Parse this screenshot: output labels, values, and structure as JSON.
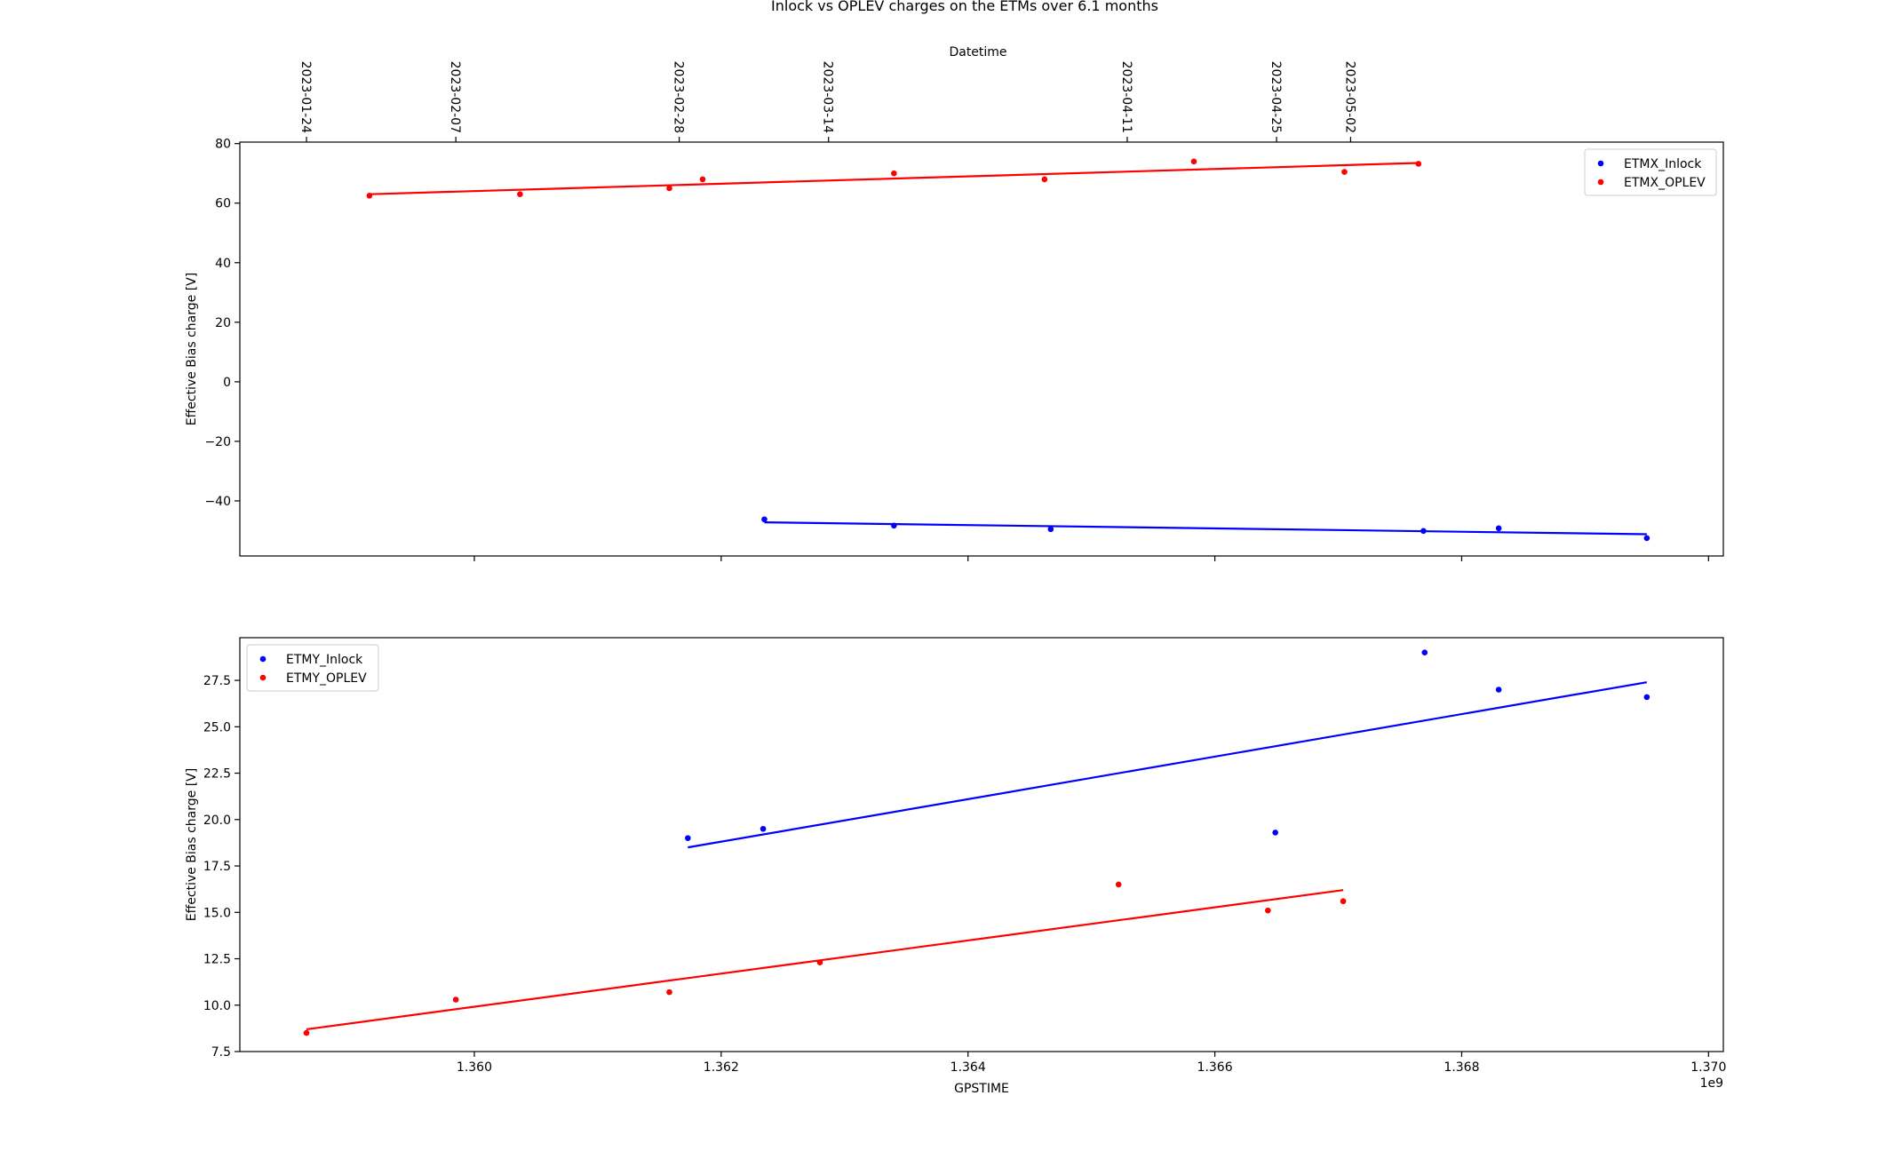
{
  "figure": {
    "title": "Inlock vs OPLEV charges on the ETMs over 6.1 months"
  },
  "chart_data": [
    {
      "type": "scatter",
      "panel": "top",
      "xlabel": "",
      "ylabel": "Effective Bias charge [V]",
      "xlim": [
        1358100000,
        1370120000
      ],
      "ylim": [
        -58.5,
        80.5
      ],
      "xticks": [
        1360000000,
        1362000000,
        1364000000,
        1366000000,
        1368000000,
        1370000000
      ],
      "xtick_labels_visible": false,
      "yticks": [
        -40,
        -20,
        0,
        20,
        40,
        60,
        80
      ],
      "ytick_labels": [
        "−40",
        "−20",
        "0",
        "20",
        "40",
        "60",
        "80"
      ],
      "secondary_xaxis": {
        "label": "Datetime",
        "position": "top",
        "ticks": [
          {
            "x": 1358640000,
            "label": "2023-01-24"
          },
          {
            "x": 1359850000,
            "label": "2023-02-07"
          },
          {
            "x": 1361660000,
            "label": "2023-02-28"
          },
          {
            "x": 1362870000,
            "label": "2023-03-14"
          },
          {
            "x": 1365290000,
            "label": "2023-04-11"
          },
          {
            "x": 1366500000,
            "label": "2023-04-25"
          },
          {
            "x": 1367100000,
            "label": "2023-05-02"
          }
        ]
      },
      "legend": {
        "location": "upper right"
      },
      "series": [
        {
          "name": "ETMX_Inlock",
          "color": "#0000ff",
          "points": [
            {
              "x": 1362350000,
              "y": -46.2
            },
            {
              "x": 1363400000,
              "y": -48.3
            },
            {
              "x": 1364670000,
              "y": -49.5
            },
            {
              "x": 1367690000,
              "y": -50.1
            },
            {
              "x": 1368300000,
              "y": -49.2
            },
            {
              "x": 1369500000,
              "y": -52.5
            }
          ],
          "fit": {
            "x": [
              1362350000,
              1369500000
            ],
            "y": [
              -47.2,
              -51.2
            ]
          }
        },
        {
          "name": "ETMX_OPLEV",
          "color": "#ff0000",
          "points": [
            {
              "x": 1359150000,
              "y": 62.5
            },
            {
              "x": 1360370000,
              "y": 63.0
            },
            {
              "x": 1361580000,
              "y": 65.0
            },
            {
              "x": 1361850000,
              "y": 68.0
            },
            {
              "x": 1363400000,
              "y": 70.0
            },
            {
              "x": 1364620000,
              "y": 68.0
            },
            {
              "x": 1365830000,
              "y": 74.0
            },
            {
              "x": 1367050000,
              "y": 70.5
            },
            {
              "x": 1367650000,
              "y": 73.2
            }
          ],
          "fit": {
            "x": [
              1359150000,
              1367650000
            ],
            "y": [
              63.0,
              73.5
            ]
          }
        }
      ]
    },
    {
      "type": "scatter",
      "panel": "bottom",
      "xlabel": "GPSTIME",
      "ylabel": "Effective Bias charge [V]",
      "xlim": [
        1358100000,
        1370120000
      ],
      "ylim": [
        7.5,
        29.8
      ],
      "xticks": [
        1360000000,
        1362000000,
        1364000000,
        1366000000,
        1368000000,
        1370000000
      ],
      "xtick_labels": [
        "1.360",
        "1.362",
        "1.364",
        "1.366",
        "1.368",
        "1.370"
      ],
      "x_offset_label": "1e9",
      "yticks": [
        7.5,
        10.0,
        12.5,
        15.0,
        17.5,
        20.0,
        22.5,
        25.0,
        27.5
      ],
      "ytick_labels": [
        "7.5",
        "10.0",
        "12.5",
        "15.0",
        "17.5",
        "20.0",
        "22.5",
        "25.0",
        "27.5"
      ],
      "legend": {
        "location": "upper left"
      },
      "series": [
        {
          "name": "ETMY_Inlock",
          "color": "#0000ff",
          "points": [
            {
              "x": 1361730000,
              "y": 19.0
            },
            {
              "x": 1362340000,
              "y": 19.5
            },
            {
              "x": 1366490000,
              "y": 19.3
            },
            {
              "x": 1367700000,
              "y": 29.0
            },
            {
              "x": 1368300000,
              "y": 27.0
            },
            {
              "x": 1369500000,
              "y": 26.6
            }
          ],
          "fit": {
            "x": [
              1361730000,
              1369500000
            ],
            "y": [
              18.5,
              27.4
            ]
          }
        },
        {
          "name": "ETMY_OPLEV",
          "color": "#ff0000",
          "points": [
            {
              "x": 1358640000,
              "y": 8.5
            },
            {
              "x": 1359850000,
              "y": 10.3
            },
            {
              "x": 1361580000,
              "y": 10.7
            },
            {
              "x": 1362800000,
              "y": 12.3
            },
            {
              "x": 1365220000,
              "y": 16.5
            },
            {
              "x": 1366430000,
              "y": 15.1
            },
            {
              "x": 1367040000,
              "y": 15.6
            }
          ],
          "fit": {
            "x": [
              1358640000,
              1367040000
            ],
            "y": [
              8.7,
              16.2
            ]
          }
        }
      ]
    }
  ]
}
